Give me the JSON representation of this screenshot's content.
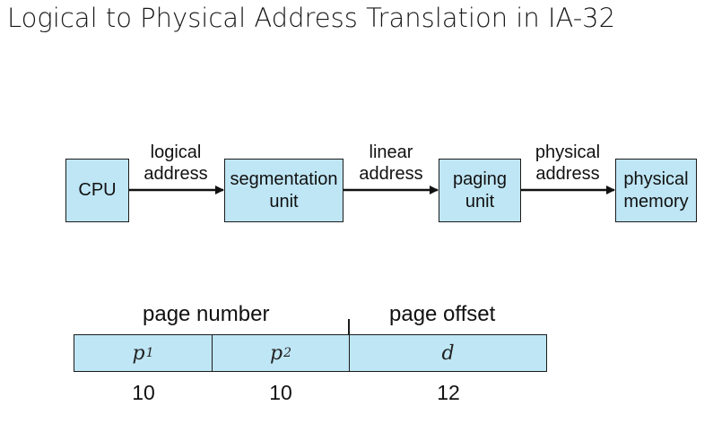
{
  "slide": {
    "title": "Logical to Physical Address Translation in IA-32"
  },
  "flow": {
    "nodes": [
      {
        "id": "cpu",
        "lines": [
          "CPU"
        ]
      },
      {
        "id": "segmentation-unit",
        "lines": [
          "segmentation",
          "unit"
        ]
      },
      {
        "id": "paging-unit",
        "lines": [
          "paging",
          "unit"
        ]
      },
      {
        "id": "physical-memory",
        "lines": [
          "physical",
          "memory"
        ]
      }
    ],
    "edges": [
      {
        "lines": [
          "logical",
          "address"
        ]
      },
      {
        "lines": [
          "linear",
          "address"
        ]
      },
      {
        "lines": [
          "physical",
          "address"
        ]
      }
    ]
  },
  "address_format": {
    "page_number_label": "page number",
    "page_offset_label": "page offset",
    "fields": [
      {
        "symbol": "p",
        "subscript": "1",
        "bits": "10"
      },
      {
        "symbol": "p",
        "subscript": "2",
        "bits": "10"
      },
      {
        "symbol": "d",
        "subscript": "",
        "bits": "12"
      }
    ],
    "colors": {
      "fill": "#bfe6f5",
      "stroke": "#1b1b1b"
    }
  }
}
